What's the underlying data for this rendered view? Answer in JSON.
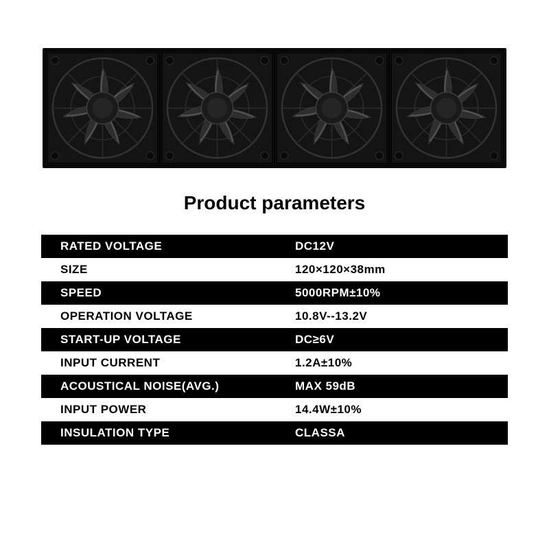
{
  "title": "Product parameters",
  "fan_count": 4,
  "rows": [
    {
      "label": "RATED VOLTAGE",
      "value": "DC12V",
      "style": "dark"
    },
    {
      "label": "SIZE",
      "value": "120×120×38mm",
      "style": "light"
    },
    {
      "label": "SPEED",
      "value": "5000RPM±10%",
      "style": "dark"
    },
    {
      "label": "OPERATION VOLTAGE",
      "value": "10.8V--13.2V",
      "style": "light"
    },
    {
      "label": "START-UP VOLTAGE",
      "value": "DC≥6V",
      "style": "dark"
    },
    {
      "label": "INPUT CURRENT",
      "value": "1.2A±10%",
      "style": "light"
    },
    {
      "label": "ACOUSTICAL NOISE(AVG.)",
      "value": "MAX 59dB",
      "style": "dark"
    },
    {
      "label": "INPUT POWER",
      "value": "14.4W±10%",
      "style": "light"
    },
    {
      "label": "INSULATION TYPE",
      "value": "CLASSA",
      "style": "dark"
    }
  ],
  "colors": {
    "dark_bg": "#000000",
    "dark_text": "#ffffff",
    "light_bg": "#ffffff",
    "light_text": "#000000",
    "fan_body": "#1a1a1a",
    "fan_blade": "#2b2b2b",
    "fan_highlight": "#4a4a4a"
  }
}
